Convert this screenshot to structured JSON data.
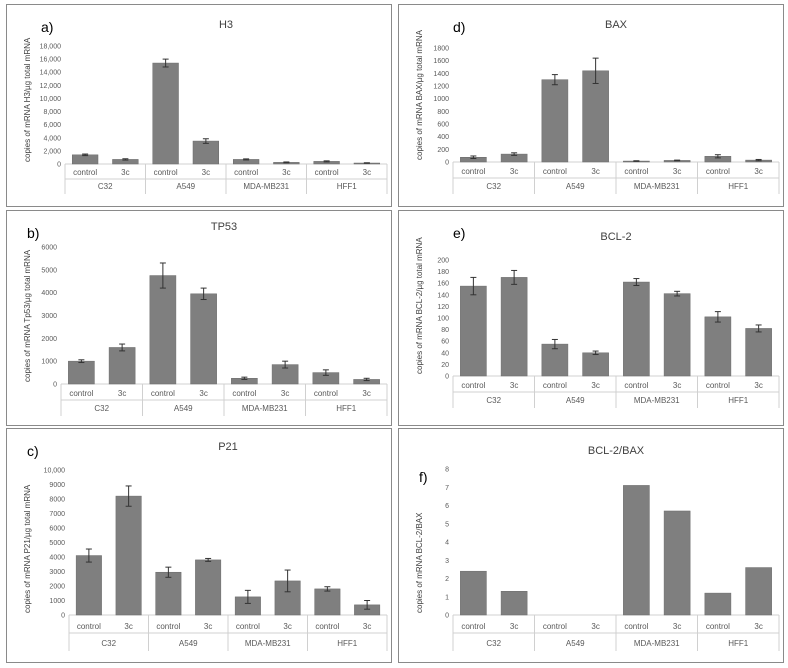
{
  "chart_data": [
    {
      "id": "a",
      "panel_label": "a)",
      "type": "bar",
      "title": "H3",
      "ylabel": "copies of mRNA H3/µg total mRNA",
      "groups": [
        "C32",
        "A549",
        "MDA-MB231",
        "HFF1"
      ],
      "bar_labels": [
        "control",
        "3c"
      ],
      "values": [
        [
          1400,
          700
        ],
        [
          15400,
          3500
        ],
        [
          700,
          250
        ],
        [
          400,
          150
        ]
      ],
      "errors": [
        [
          120,
          100
        ],
        [
          600,
          350
        ],
        [
          80,
          60
        ],
        [
          80,
          40
        ]
      ],
      "ylim": [
        0,
        18000
      ],
      "yticks": [
        "0",
        "2,000",
        "4,000",
        "6,000",
        "8,000",
        "10,000",
        "12,000",
        "14,000",
        "16,000",
        "18,000"
      ]
    },
    {
      "id": "b",
      "panel_label": "b)",
      "type": "bar",
      "title": "TP53",
      "ylabel": "copies of mRNA Tp53/µg total mRNA",
      "groups": [
        "C32",
        "A549",
        "MDA-MB231",
        "HFF1"
      ],
      "bar_labels": [
        "control",
        "3c"
      ],
      "values": [
        [
          1000,
          1600
        ],
        [
          4750,
          3950
        ],
        [
          250,
          850
        ],
        [
          500,
          200
        ]
      ],
      "errors": [
        [
          60,
          150
        ],
        [
          550,
          250
        ],
        [
          50,
          150
        ],
        [
          120,
          50
        ]
      ],
      "ylim": [
        0,
        6000
      ],
      "yticks": [
        "0",
        "1000",
        "2000",
        "3000",
        "4000",
        "5000",
        "6000"
      ]
    },
    {
      "id": "c",
      "panel_label": "c)",
      "type": "bar",
      "title": "P21",
      "ylabel": "copies of mRNA P21/µg total mRNA",
      "groups": [
        "C32",
        "A549",
        "MDA-MB231",
        "HFF1"
      ],
      "bar_labels": [
        "control",
        "3c"
      ],
      "values": [
        [
          4100,
          8200
        ],
        [
          2950,
          3800
        ],
        [
          1250,
          2350
        ],
        [
          1800,
          700
        ]
      ],
      "errors": [
        [
          450,
          700
        ],
        [
          350,
          100
        ],
        [
          450,
          750
        ],
        [
          150,
          300
        ]
      ],
      "ylim": [
        0,
        10000
      ],
      "yticks": [
        "0",
        "1000",
        "2000",
        "3000",
        "4000",
        "5000",
        "6000",
        "7000",
        "8000",
        "9000",
        "10,000"
      ]
    },
    {
      "id": "d",
      "panel_label": "d)",
      "type": "bar",
      "title": "BAX",
      "ylabel": "copies of mRNA BAX/µg total mRNA",
      "groups": [
        "C32",
        "A549",
        "MDA-MB231",
        "HFF1"
      ],
      "bar_labels": [
        "control",
        "3c"
      ],
      "values": [
        [
          75,
          125
        ],
        [
          1300,
          1440
        ],
        [
          15,
          25
        ],
        [
          90,
          30
        ]
      ],
      "errors": [
        [
          20,
          20
        ],
        [
          80,
          200
        ],
        [
          5,
          5
        ],
        [
          25,
          10
        ]
      ],
      "ylim": [
        0,
        1800
      ],
      "yticks": [
        "0",
        "200",
        "400",
        "600",
        "800",
        "1000",
        "1200",
        "1400",
        "1600",
        "1800"
      ]
    },
    {
      "id": "e",
      "panel_label": "e)",
      "type": "bar",
      "title": "BCL-2",
      "ylabel": "copies of mRNA BCL-2/µg total mRNA",
      "groups": [
        "C32",
        "A549",
        "MDA-MB231",
        "HFF1"
      ],
      "bar_labels": [
        "control",
        "3c"
      ],
      "values": [
        [
          155,
          170
        ],
        [
          55,
          40
        ],
        [
          162,
          142
        ],
        [
          102,
          82
        ]
      ],
      "errors": [
        [
          15,
          12
        ],
        [
          8,
          3
        ],
        [
          6,
          4
        ],
        [
          9,
          6
        ]
      ],
      "ylim": [
        0,
        200
      ],
      "yticks": [
        "0",
        "20",
        "40",
        "60",
        "80",
        "100",
        "120",
        "140",
        "160",
        "180",
        "200"
      ]
    },
    {
      "id": "f",
      "panel_label": "f)",
      "type": "bar",
      "title": "BCL-2/BAX",
      "ylabel": "copies of mRNA BCL-2/BAX",
      "groups": [
        "C32",
        "A549",
        "MDA-MB231",
        "HFF1"
      ],
      "bar_labels": [
        "control",
        "3c"
      ],
      "values": [
        [
          2.4,
          1.3
        ],
        [
          0,
          0
        ],
        [
          7.1,
          5.7
        ],
        [
          1.2,
          2.6
        ]
      ],
      "errors": null,
      "ylim": [
        0,
        8
      ],
      "yticks": [
        "0",
        "1",
        "2",
        "3",
        "4",
        "5",
        "6",
        "7",
        "8"
      ]
    }
  ],
  "colors": {
    "bar": "#7f7f7f",
    "bar_edge": "#6a6a6a",
    "axis": "#d0d0d0",
    "text": "#595959"
  }
}
